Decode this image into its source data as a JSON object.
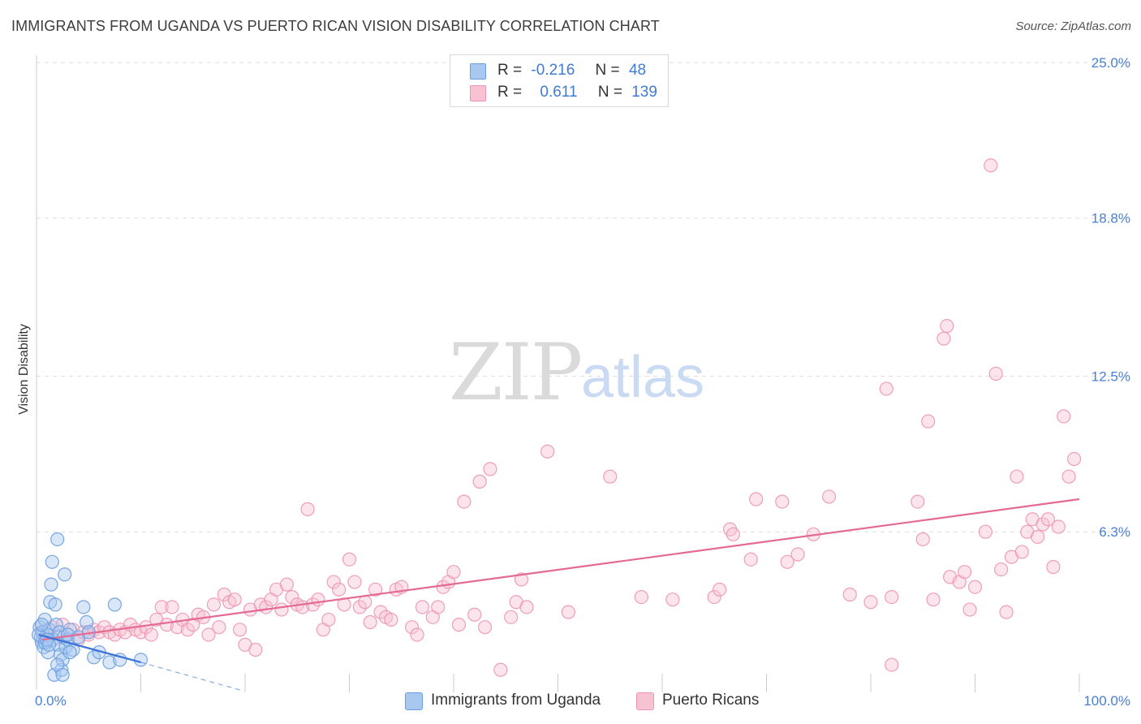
{
  "title": "IMMIGRANTS FROM UGANDA VS PUERTO RICAN VISION DISABILITY CORRELATION CHART",
  "source": "Source: ZipAtlas.com",
  "watermark": {
    "zip": "ZIP",
    "atlas": "atlas"
  },
  "colors": {
    "blue_fill": "#a9c8f0",
    "blue_stroke": "#6a9ee0",
    "blue_line": "#3a72d6",
    "pink_fill": "#f7c3d3",
    "pink_stroke": "#ee93b2",
    "pink_line": "#e46a93",
    "grid": "#dedede",
    "tick": "#4a7fd4"
  },
  "legend": {
    "rows": [
      {
        "r_label": "R =",
        "r_value": "-0.216",
        "n_label": "N =",
        "n_value": "48"
      },
      {
        "r_label": "R =",
        "r_value": "0.611",
        "n_label": "N =",
        "n_value": "139"
      }
    ]
  },
  "bottom_legend": {
    "series1": "Immigrants from Uganda",
    "series2": "Puerto Ricans"
  },
  "chart_data": {
    "type": "scatter",
    "title": "IMMIGRANTS FROM UGANDA VS PUERTO RICAN VISION DISABILITY CORRELATION CHART",
    "xlabel": "",
    "ylabel": "Vision Disability",
    "xlim": [
      0,
      100
    ],
    "ylim": [
      0,
      25
    ],
    "x_tick_labels": [
      "0.0%",
      "100.0%"
    ],
    "y_ticks": [
      6.3,
      12.5,
      18.8,
      25.0
    ],
    "y_tick_labels": [
      "6.3%",
      "12.5%",
      "18.8%",
      "25.0%"
    ],
    "series": [
      {
        "name": "Immigrants from Uganda",
        "r": -0.216,
        "n": 48,
        "trend": {
          "x": [
            0.2,
            10.0
          ],
          "y": [
            2.2,
            1.1
          ],
          "dashed_to": [
            19.5,
            0.0
          ]
        },
        "points": [
          [
            0.3,
            2.5
          ],
          [
            0.4,
            2.1
          ],
          [
            0.5,
            1.9
          ],
          [
            0.6,
            2.3
          ],
          [
            0.7,
            1.7
          ],
          [
            0.8,
            2.8
          ],
          [
            0.9,
            2.0
          ],
          [
            1.0,
            2.2
          ],
          [
            1.1,
            1.5
          ],
          [
            1.2,
            2.4
          ],
          [
            1.3,
            3.5
          ],
          [
            1.4,
            4.2
          ],
          [
            1.5,
            5.1
          ],
          [
            1.6,
            2.0
          ],
          [
            1.7,
            0.6
          ],
          [
            1.8,
            3.4
          ],
          [
            1.9,
            2.6
          ],
          [
            2.0,
            6.0
          ],
          [
            2.1,
            1.8
          ],
          [
            2.2,
            2.3
          ],
          [
            2.3,
            1.4
          ],
          [
            2.4,
            0.8
          ],
          [
            2.5,
            1.2
          ],
          [
            2.6,
            2.1
          ],
          [
            2.7,
            4.6
          ],
          [
            2.8,
            1.7
          ],
          [
            3.0,
            2.0
          ],
          [
            3.2,
            2.4
          ],
          [
            3.5,
            1.6
          ],
          [
            0.2,
            2.2
          ],
          [
            0.5,
            2.6
          ],
          [
            0.8,
            1.9
          ],
          [
            1.0,
            2.0
          ],
          [
            1.2,
            1.8
          ],
          [
            2.0,
            1.0
          ],
          [
            2.5,
            0.6
          ],
          [
            3.0,
            2.2
          ],
          [
            3.2,
            1.5
          ],
          [
            4.0,
            2.1
          ],
          [
            4.5,
            3.3
          ],
          [
            4.8,
            2.7
          ],
          [
            5.0,
            2.3
          ],
          [
            5.5,
            1.3
          ],
          [
            6.0,
            1.5
          ],
          [
            7.0,
            1.1
          ],
          [
            7.5,
            3.4
          ],
          [
            8.0,
            1.2
          ],
          [
            10.0,
            1.2
          ]
        ]
      },
      {
        "name": "Puerto Ricans",
        "r": 0.611,
        "n": 139,
        "trend": {
          "x": [
            0.5,
            100.0
          ],
          "y": [
            2.0,
            7.6
          ]
        },
        "points": [
          [
            0.5,
            2.3
          ],
          [
            1.0,
            2.2
          ],
          [
            1.5,
            2.5
          ],
          [
            2.0,
            2.1
          ],
          [
            2.5,
            2.6
          ],
          [
            3.0,
            2.2
          ],
          [
            3.5,
            2.4
          ],
          [
            4.0,
            2.0
          ],
          [
            4.5,
            2.3
          ],
          [
            5.0,
            2.2
          ],
          [
            5.5,
            2.4
          ],
          [
            6.0,
            2.3
          ],
          [
            6.5,
            2.5
          ],
          [
            7.0,
            2.3
          ],
          [
            7.5,
            2.2
          ],
          [
            8.0,
            2.4
          ],
          [
            8.5,
            2.3
          ],
          [
            9.0,
            2.6
          ],
          [
            9.5,
            2.4
          ],
          [
            10.0,
            2.3
          ],
          [
            10.5,
            2.5
          ],
          [
            11.0,
            2.2
          ],
          [
            11.5,
            2.8
          ],
          [
            12.0,
            3.3
          ],
          [
            12.5,
            2.6
          ],
          [
            13.0,
            3.3
          ],
          [
            13.5,
            2.5
          ],
          [
            14.0,
            2.8
          ],
          [
            14.5,
            2.4
          ],
          [
            15.0,
            2.6
          ],
          [
            15.5,
            3.0
          ],
          [
            16.0,
            2.9
          ],
          [
            16.5,
            2.2
          ],
          [
            17.0,
            3.4
          ],
          [
            17.5,
            2.5
          ],
          [
            18.0,
            3.8
          ],
          [
            18.5,
            3.5
          ],
          [
            19.0,
            3.6
          ],
          [
            19.5,
            2.4
          ],
          [
            20.0,
            1.8
          ],
          [
            20.5,
            3.2
          ],
          [
            21.0,
            1.6
          ],
          [
            21.5,
            3.4
          ],
          [
            22.0,
            3.3
          ],
          [
            22.5,
            3.6
          ],
          [
            23.0,
            4.0
          ],
          [
            23.5,
            3.2
          ],
          [
            24.0,
            4.2
          ],
          [
            24.5,
            3.7
          ],
          [
            25.0,
            3.4
          ],
          [
            25.5,
            3.3
          ],
          [
            26.0,
            7.2
          ],
          [
            26.5,
            3.4
          ],
          [
            27.0,
            3.6
          ],
          [
            27.5,
            2.4
          ],
          [
            28.0,
            2.8
          ],
          [
            28.5,
            4.3
          ],
          [
            29.0,
            4.0
          ],
          [
            29.5,
            3.4
          ],
          [
            30.0,
            5.2
          ],
          [
            30.5,
            4.3
          ],
          [
            31.0,
            3.3
          ],
          [
            31.5,
            3.5
          ],
          [
            32.0,
            2.7
          ],
          [
            32.5,
            4.0
          ],
          [
            33.0,
            3.1
          ],
          [
            33.5,
            2.9
          ],
          [
            34.0,
            2.8
          ],
          [
            34.5,
            4.0
          ],
          [
            35.0,
            4.1
          ],
          [
            36.0,
            2.5
          ],
          [
            36.5,
            2.2
          ],
          [
            37.0,
            3.3
          ],
          [
            38.0,
            2.9
          ],
          [
            38.5,
            3.3
          ],
          [
            39.0,
            4.1
          ],
          [
            39.5,
            4.3
          ],
          [
            40.0,
            4.7
          ],
          [
            40.5,
            2.6
          ],
          [
            41.0,
            7.5
          ],
          [
            42.0,
            3.0
          ],
          [
            42.5,
            8.3
          ],
          [
            43.0,
            2.5
          ],
          [
            43.5,
            8.8
          ],
          [
            44.5,
            0.8
          ],
          [
            45.5,
            2.9
          ],
          [
            46.0,
            3.5
          ],
          [
            46.5,
            4.4
          ],
          [
            47.0,
            3.3
          ],
          [
            49.0,
            9.5
          ],
          [
            51.0,
            3.1
          ],
          [
            55.0,
            8.5
          ],
          [
            58.0,
            3.7
          ],
          [
            61.0,
            3.6
          ],
          [
            65.0,
            3.7
          ],
          [
            65.5,
            4.0
          ],
          [
            66.5,
            6.4
          ],
          [
            66.8,
            6.2
          ],
          [
            68.5,
            5.2
          ],
          [
            69.0,
            7.6
          ],
          [
            71.5,
            7.5
          ],
          [
            72.0,
            5.1
          ],
          [
            73.0,
            5.4
          ],
          [
            74.5,
            6.2
          ],
          [
            76.0,
            7.7
          ],
          [
            78.0,
            3.8
          ],
          [
            80.0,
            3.5
          ],
          [
            81.5,
            12.0
          ],
          [
            82.0,
            1.0
          ],
          [
            82.0,
            3.7
          ],
          [
            84.5,
            7.5
          ],
          [
            85.0,
            6.0
          ],
          [
            85.5,
            10.7
          ],
          [
            86.0,
            3.6
          ],
          [
            87.0,
            14.0
          ],
          [
            87.3,
            14.5
          ],
          [
            87.6,
            4.5
          ],
          [
            88.5,
            4.3
          ],
          [
            89.0,
            4.7
          ],
          [
            89.5,
            3.2
          ],
          [
            90.0,
            4.1
          ],
          [
            91.0,
            6.3
          ],
          [
            91.5,
            20.9
          ],
          [
            92.0,
            12.6
          ],
          [
            92.5,
            4.8
          ],
          [
            93.0,
            3.1
          ],
          [
            93.5,
            5.3
          ],
          [
            94.0,
            8.5
          ],
          [
            94.5,
            5.5
          ],
          [
            95.0,
            6.3
          ],
          [
            95.5,
            6.8
          ],
          [
            96.0,
            6.1
          ],
          [
            96.5,
            6.6
          ],
          [
            97.0,
            6.8
          ],
          [
            97.5,
            4.9
          ],
          [
            98.0,
            6.5
          ],
          [
            98.5,
            10.9
          ],
          [
            99.0,
            8.5
          ],
          [
            99.5,
            9.2
          ]
        ]
      }
    ]
  }
}
